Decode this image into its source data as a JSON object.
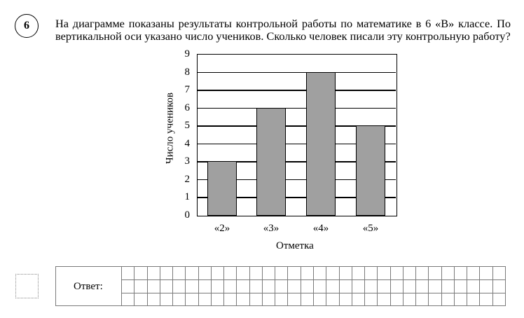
{
  "question": {
    "number": "6",
    "line1": "На диаграмме показаны результаты контрольной работы по математике в 6 «В» классе. По",
    "line2": "вертикальной оси указано число учеников. Сколько человек писали эту контрольную работу?"
  },
  "chart_data": {
    "type": "bar",
    "title": "",
    "categories": [
      "«2»",
      "«3»",
      "«4»",
      "«5»"
    ],
    "values": [
      3,
      6,
      8,
      5
    ],
    "xlabel": "Отметка",
    "ylabel": "Число учеников",
    "ylim": [
      0,
      9
    ],
    "yticks": [
      "0",
      "1",
      "2",
      "3",
      "4",
      "5",
      "6",
      "7",
      "8",
      "9"
    ],
    "grid": true,
    "legend": null,
    "bar_color": "#a0a0a0"
  },
  "answer": {
    "label": "Ответ:",
    "grid_columns": 30,
    "grid_rows": 3
  }
}
